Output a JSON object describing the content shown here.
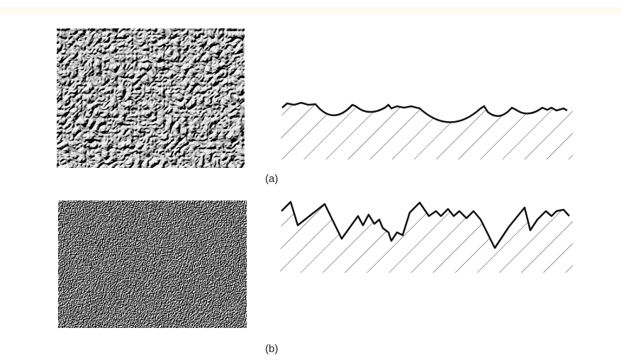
{
  "figure": {
    "labels": {
      "a": "(a)",
      "b": "(b)"
    }
  }
}
